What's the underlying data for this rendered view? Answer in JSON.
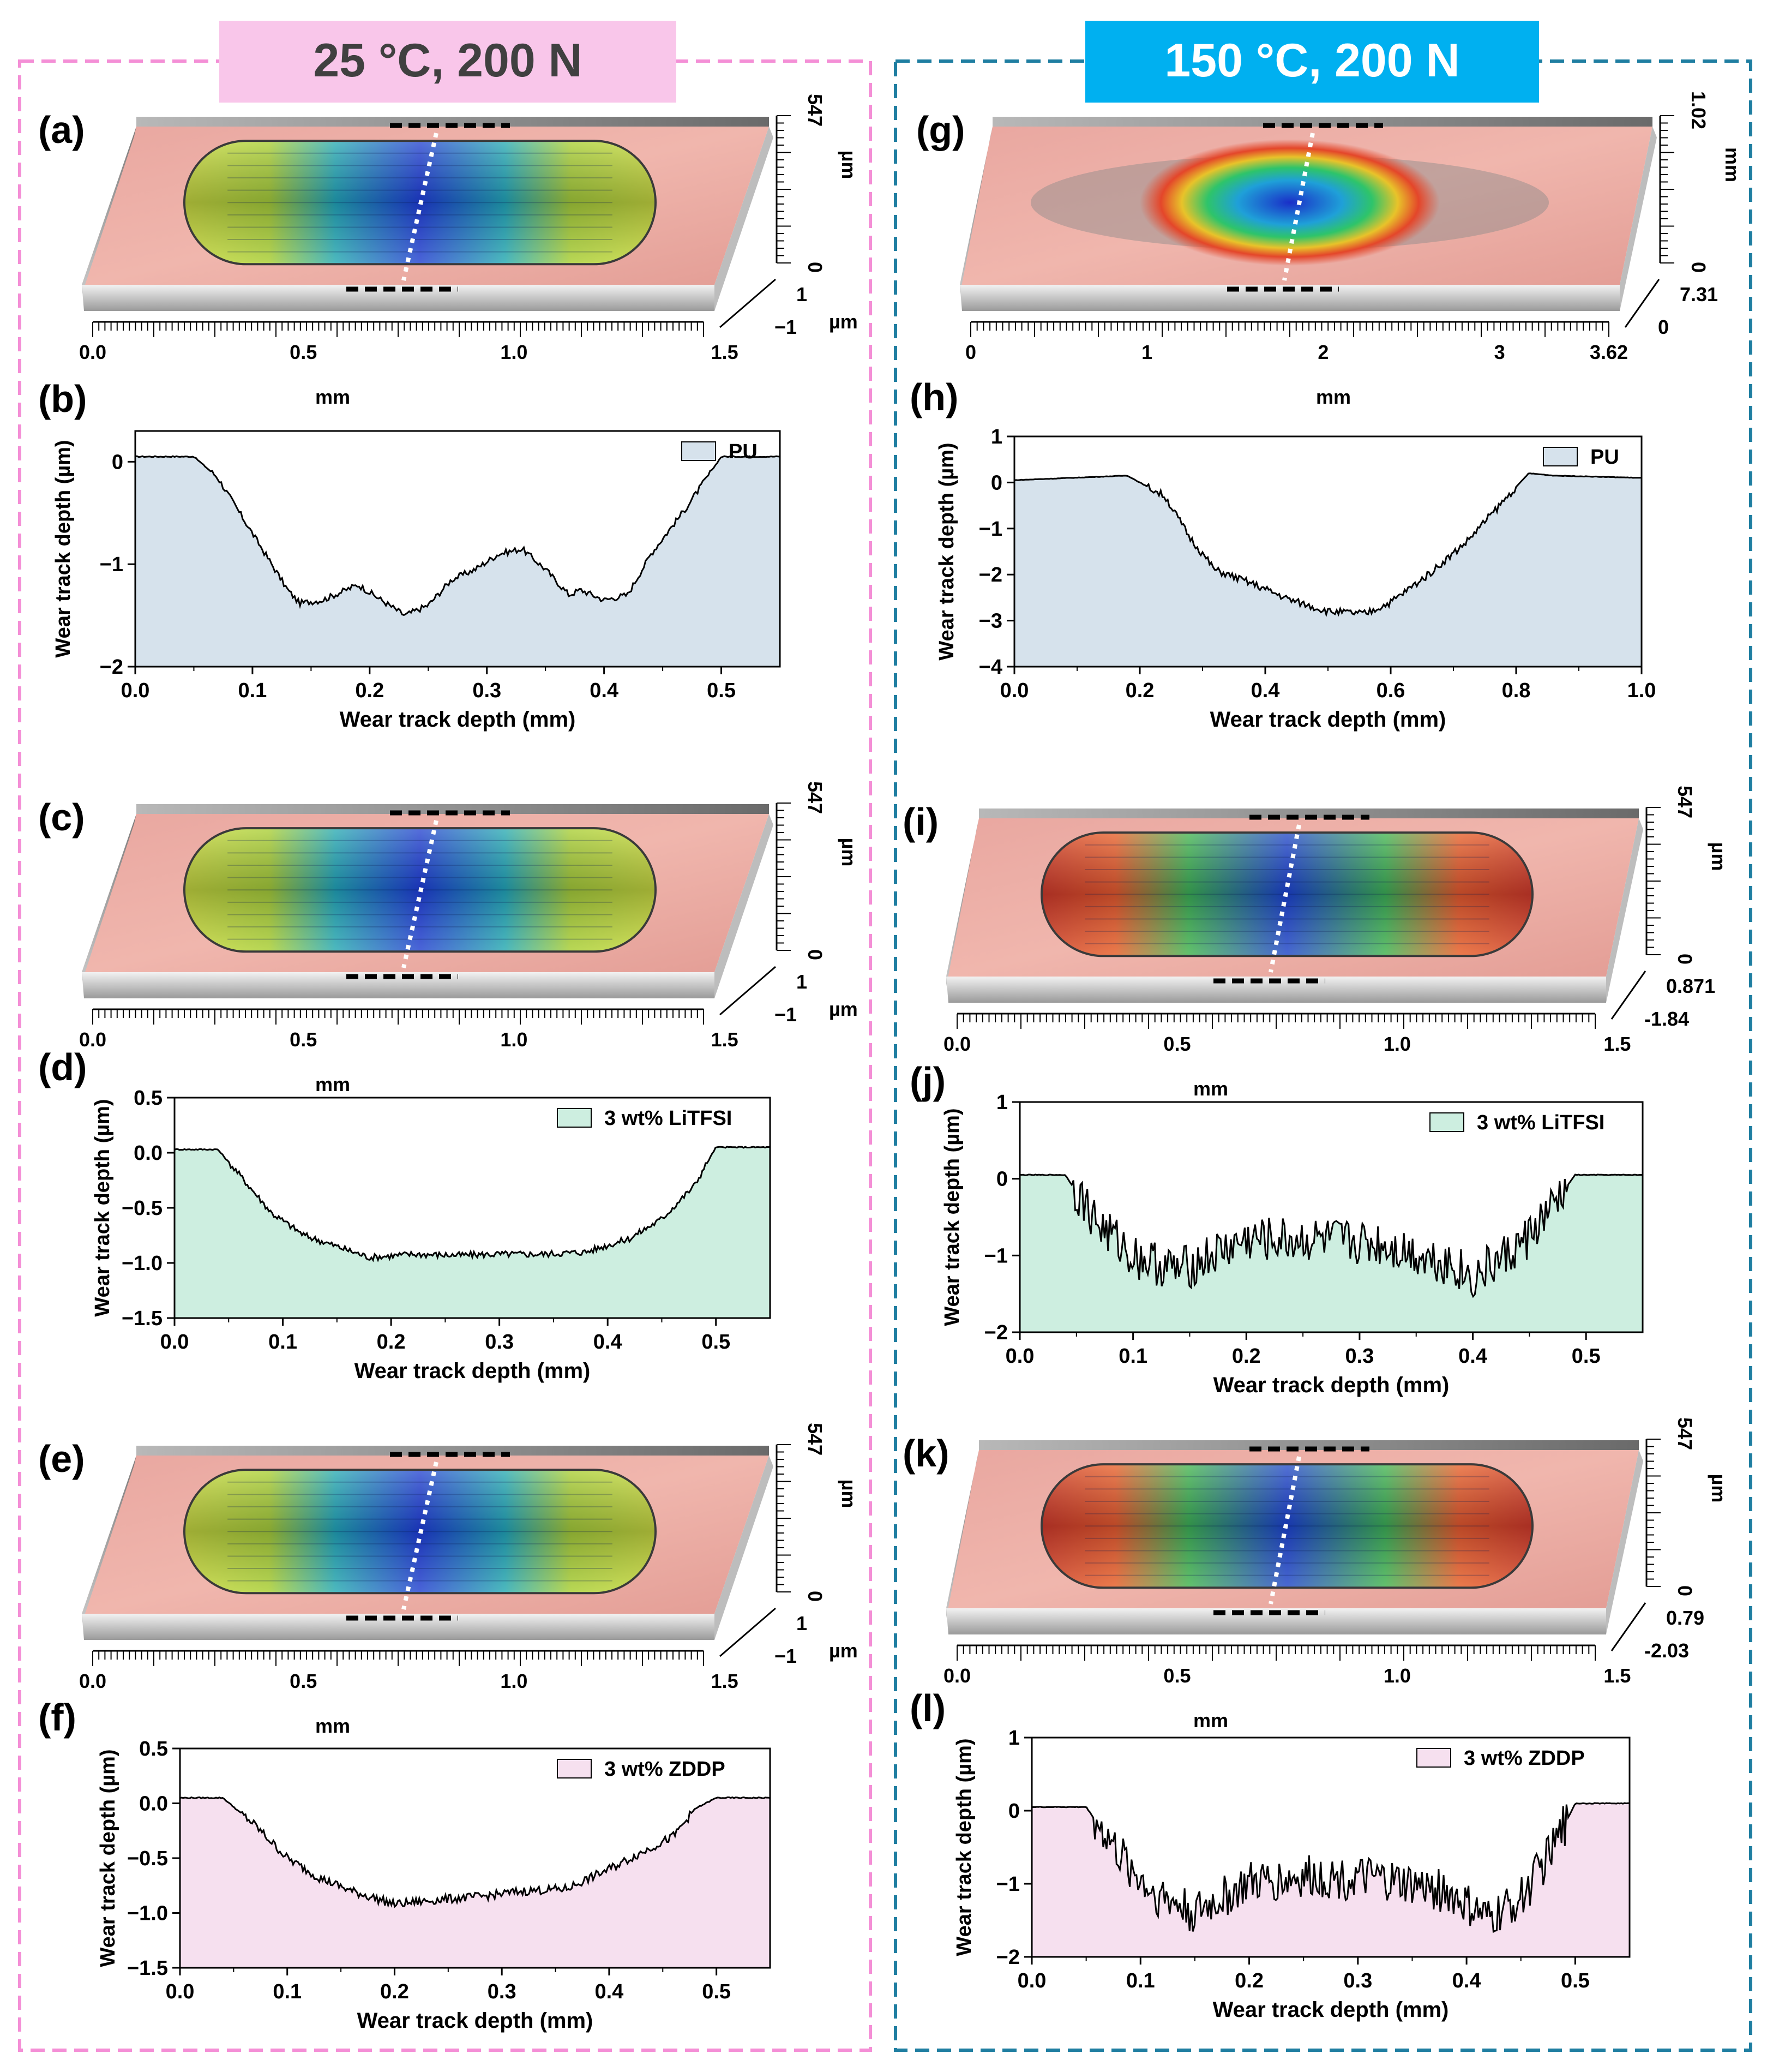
{
  "headers": {
    "left": "25 °C, 200 N",
    "right": "150 °C, 200 N",
    "left_color": "#f9c6ea",
    "right_color": "#00b0f0",
    "left_border": "#f48fd6",
    "right_border": "#1f7ea1"
  },
  "colors": {
    "PU": "#d6e2ec",
    "LiTFSI": "#cdeee0",
    "ZDDP": "#f6e0ef"
  },
  "surfaces": [
    {
      "letter": "(a)",
      "xticks": [
        "0.0",
        "0.5",
        "1.0",
        "1.5"
      ],
      "z_top": "547",
      "z_unit": "µm",
      "z_zero": "0",
      "z_a": "1",
      "z_b": "−1",
      "depth_unit": "µm",
      "x_unit": "mm",
      "style": "cool"
    },
    {
      "letter": "(c)",
      "xticks": [
        "0.0",
        "0.5",
        "1.0",
        "1.5"
      ],
      "z_top": "547",
      "z_unit": "µm",
      "z_zero": "0",
      "z_a": "1",
      "z_b": "−1",
      "depth_unit": "µm",
      "x_unit": "mm",
      "style": "cool"
    },
    {
      "letter": "(e)",
      "xticks": [
        "0.0",
        "0.5",
        "1.0",
        "1.5"
      ],
      "z_top": "547",
      "z_unit": "µm",
      "z_zero": "0",
      "z_a": "1",
      "z_b": "−1",
      "depth_unit": "µm",
      "x_unit": "mm",
      "style": "cool"
    },
    {
      "letter": "(g)",
      "xticks": [
        "0",
        "1",
        "2",
        "3",
        "3.62"
      ],
      "z_top": "1.02",
      "z_unit": "mm",
      "z_zero": "0",
      "z_a": "7.31",
      "z_b": "0",
      "depth_unit": "",
      "x_unit": "mm",
      "style": "oval"
    },
    {
      "letter": "(i)",
      "xticks": [
        "0.0",
        "0.5",
        "1.0",
        "1.5"
      ],
      "z_top": "547",
      "z_unit": "µm",
      "z_zero": "0",
      "z_a": "0.871",
      "z_b": "-1.84",
      "depth_unit": "",
      "x_unit": "mm",
      "style": "hot"
    },
    {
      "letter": "(k)",
      "xticks": [
        "0.0",
        "0.5",
        "1.0",
        "1.5"
      ],
      "z_top": "547",
      "z_unit": "µm",
      "z_zero": "0",
      "z_a": "0.79",
      "z_b": "-2.03",
      "depth_unit": "",
      "x_unit": "mm",
      "style": "hot"
    }
  ],
  "chart_data": [
    {
      "letter": "(b)",
      "type": "area",
      "legend": "PU",
      "fill": "PU",
      "xlabel": "Wear track depth (mm)",
      "ylabel": "Wear track depth (µm)",
      "xlim": [
        0,
        0.55
      ],
      "ylim": [
        -2,
        0.3
      ],
      "xticks": [
        0,
        0.1,
        0.2,
        0.3,
        0.4,
        0.5
      ],
      "xtick_labels": [
        "0.0",
        "0.1",
        "0.2",
        "0.3",
        "0.4",
        "0.5"
      ],
      "yticks": [
        0,
        -1,
        -2
      ],
      "ytick_labels": [
        "0",
        "−1",
        "−2"
      ],
      "noise": 0.03,
      "x": [
        0,
        0.05,
        0.07,
        0.1,
        0.13,
        0.14,
        0.16,
        0.19,
        0.21,
        0.23,
        0.25,
        0.27,
        0.29,
        0.31,
        0.33,
        0.35,
        0.37,
        0.38,
        0.4,
        0.42,
        0.44,
        0.47,
        0.5,
        0.55
      ],
      "y": [
        0.05,
        0.05,
        -0.15,
        -0.7,
        -1.25,
        -1.38,
        -1.35,
        -1.2,
        -1.35,
        -1.5,
        -1.4,
        -1.15,
        -1.05,
        -0.9,
        -0.85,
        -1.05,
        -1.3,
        -1.25,
        -1.35,
        -1.3,
        -0.9,
        -0.45,
        0.05,
        0.05
      ]
    },
    {
      "letter": "(d)",
      "type": "area",
      "legend": "3 wt% LiTFSI",
      "fill": "LiTFSI",
      "xlabel": "Wear track depth (mm)",
      "ylabel": "Wear track depth (µm)",
      "xlim": [
        0,
        0.55
      ],
      "ylim": [
        -1.5,
        0.5
      ],
      "xticks": [
        0,
        0.1,
        0.2,
        0.3,
        0.4,
        0.5
      ],
      "xtick_labels": [
        "0.0",
        "0.1",
        "0.2",
        "0.3",
        "0.4",
        "0.5"
      ],
      "yticks": [
        0.5,
        0,
        -0.5,
        -1,
        -1.5
      ],
      "ytick_labels": [
        "0.5",
        "0.0",
        "−0.5",
        "−1.0",
        "−1.5"
      ],
      "noise": 0.03,
      "x": [
        0,
        0.04,
        0.06,
        0.09,
        0.12,
        0.15,
        0.18,
        0.22,
        0.26,
        0.3,
        0.34,
        0.38,
        0.42,
        0.45,
        0.48,
        0.5,
        0.55
      ],
      "y": [
        0.03,
        0.03,
        -0.2,
        -0.55,
        -0.75,
        -0.85,
        -0.95,
        -0.92,
        -0.93,
        -0.92,
        -0.92,
        -0.9,
        -0.78,
        -0.6,
        -0.3,
        0.05,
        0.05
      ]
    },
    {
      "letter": "(f)",
      "type": "area",
      "legend": "3 wt% ZDDP",
      "fill": "ZDDP",
      "xlabel": "Wear track depth (mm)",
      "ylabel": "Wear track depth (µm)",
      "xlim": [
        0,
        0.55
      ],
      "ylim": [
        -1.5,
        0.5
      ],
      "xticks": [
        0,
        0.1,
        0.2,
        0.3,
        0.4,
        0.5
      ],
      "xtick_labels": [
        "0.0",
        "0.1",
        "0.2",
        "0.3",
        "0.4",
        "0.5"
      ],
      "yticks": [
        0.5,
        0,
        -0.5,
        -1,
        -1.5
      ],
      "ytick_labels": [
        "0.5",
        "0.0",
        "−0.5",
        "−1.0",
        "−1.5"
      ],
      "noise": 0.04,
      "x": [
        0,
        0.04,
        0.07,
        0.1,
        0.13,
        0.16,
        0.2,
        0.24,
        0.28,
        0.32,
        0.36,
        0.4,
        0.43,
        0.46,
        0.48,
        0.5,
        0.55
      ],
      "y": [
        0.05,
        0.05,
        -0.2,
        -0.5,
        -0.68,
        -0.8,
        -0.92,
        -0.88,
        -0.85,
        -0.8,
        -0.78,
        -0.6,
        -0.45,
        -0.3,
        -0.05,
        0.05,
        0.05
      ]
    },
    {
      "letter": "(h)",
      "type": "area",
      "legend": "PU",
      "fill": "PU",
      "xlabel": "Wear track depth (mm)",
      "ylabel": "Wear track depth (µm)",
      "xlim": [
        0,
        1
      ],
      "ylim": [
        -4,
        1
      ],
      "xticks": [
        0,
        0.2,
        0.4,
        0.6,
        0.8,
        1.0
      ],
      "xtick_labels": [
        "0.0",
        "0.2",
        "0.4",
        "0.6",
        "0.8",
        "1.0"
      ],
      "yticks": [
        1,
        0,
        -1,
        -2,
        -3,
        -4
      ],
      "ytick_labels": [
        "1",
        "0",
        "−1",
        "−2",
        "−3",
        "−4"
      ],
      "noise": 0.08,
      "x": [
        0,
        0.18,
        0.24,
        0.28,
        0.32,
        0.38,
        0.44,
        0.5,
        0.56,
        0.6,
        0.66,
        0.72,
        0.78,
        0.82,
        0.86,
        1.0
      ],
      "y": [
        0.05,
        0.15,
        -0.3,
        -1.2,
        -1.9,
        -2.2,
        -2.55,
        -2.8,
        -2.85,
        -2.6,
        -2.0,
        -1.3,
        -0.4,
        0.2,
        0.15,
        0.1
      ]
    },
    {
      "letter": "(j)",
      "type": "area",
      "legend": "3 wt% LiTFSI",
      "fill": "LiTFSI",
      "xlabel": "Wear track depth (mm)",
      "ylabel": "Wear track depth (µm)",
      "xlim": [
        0,
        0.55
      ],
      "ylim": [
        -2,
        1
      ],
      "xticks": [
        0,
        0.1,
        0.2,
        0.3,
        0.4,
        0.5
      ],
      "xtick_labels": [
        "0.0",
        "0.1",
        "0.2",
        "0.3",
        "0.4",
        "0.5"
      ],
      "yticks": [
        1,
        0,
        -1,
        -2
      ],
      "ytick_labels": [
        "1",
        "0",
        "−1",
        "−2"
      ],
      "noise": 0.3,
      "x": [
        0,
        0.04,
        0.07,
        0.1,
        0.14,
        0.2,
        0.26,
        0.32,
        0.38,
        0.4,
        0.44,
        0.47,
        0.49,
        0.55
      ],
      "y": [
        0.05,
        0.05,
        -0.6,
        -1.0,
        -1.2,
        -0.8,
        -0.8,
        -0.85,
        -1.1,
        -1.3,
        -0.9,
        -0.4,
        0.05,
        0.05
      ]
    },
    {
      "letter": "(l)",
      "type": "area",
      "legend": "3 wt% ZDDP",
      "fill": "ZDDP",
      "xlabel": "Wear track depth (mm)",
      "ylabel": "Wear track depth (µm)",
      "xlim": [
        0,
        0.55
      ],
      "ylim": [
        -2,
        1
      ],
      "xticks": [
        0,
        0.1,
        0.2,
        0.3,
        0.4,
        0.5
      ],
      "xtick_labels": [
        "0.0",
        "0.1",
        "0.2",
        "0.3",
        "0.4",
        "0.5"
      ],
      "yticks": [
        1,
        0,
        -1,
        -2
      ],
      "ytick_labels": [
        "1",
        "0",
        "−1",
        "−2"
      ],
      "noise": 0.3,
      "x": [
        0,
        0.05,
        0.08,
        0.11,
        0.15,
        0.2,
        0.26,
        0.32,
        0.38,
        0.42,
        0.45,
        0.48,
        0.5,
        0.55
      ],
      "y": [
        0.05,
        0.05,
        -0.6,
        -1.1,
        -1.4,
        -1.0,
        -0.9,
        -0.95,
        -1.1,
        -1.5,
        -1.2,
        -0.5,
        0.1,
        0.1
      ]
    }
  ]
}
